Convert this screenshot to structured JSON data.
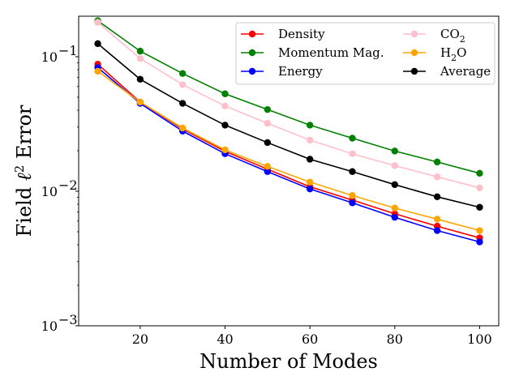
{
  "chart_data": {
    "type": "line",
    "title": "",
    "xlabel": "Number of Modes",
    "ylabel": "Field ℓ² Error",
    "ylabel_parts": {
      "prefix": "Field ",
      "ell": "ℓ",
      "sup": "2",
      "suffix": " Error"
    },
    "yscale": "log",
    "xlim": [
      5.5,
      104.5
    ],
    "ylim": [
      0.001,
      0.2
    ],
    "x": [
      10,
      20,
      30,
      40,
      50,
      60,
      70,
      80,
      90,
      100
    ],
    "x_ticks": [
      20,
      40,
      60,
      80,
      100
    ],
    "y_ticks": [
      {
        "value": 0.001,
        "base": "10",
        "exp": "−3"
      },
      {
        "value": 0.01,
        "base": "10",
        "exp": "−2"
      },
      {
        "value": 0.1,
        "base": "10",
        "exp": "−1"
      }
    ],
    "grid": false,
    "legend_position": "top-right",
    "series": [
      {
        "name": "Density",
        "color": "#ff0000",
        "values": [
          0.088,
          0.046,
          0.029,
          0.0198,
          0.0146,
          0.0108,
          0.0086,
          0.0068,
          0.0055,
          0.0045
        ]
      },
      {
        "name": "Momentum Mag.",
        "color": "#008000",
        "values": [
          0.185,
          0.11,
          0.075,
          0.053,
          0.0405,
          0.031,
          0.0248,
          0.0199,
          0.0165,
          0.0136
        ]
      },
      {
        "name": "Energy",
        "color": "#0000ff",
        "values": [
          0.083,
          0.045,
          0.028,
          0.019,
          0.014,
          0.0104,
          0.0082,
          0.0064,
          0.0051,
          0.0042
        ]
      },
      {
        "name": "CO₂",
        "color": "#ffc0cb",
        "label_main": "CO",
        "label_sub": "2",
        "values": [
          0.18,
          0.097,
          0.062,
          0.043,
          0.032,
          0.024,
          0.019,
          0.0155,
          0.0128,
          0.0106
        ]
      },
      {
        "name": "H₂O",
        "color": "#ffa500",
        "label_main": "H",
        "label_sub": "2",
        "label_tail": "O",
        "values": [
          0.078,
          0.046,
          0.0295,
          0.0203,
          0.0153,
          0.0117,
          0.0093,
          0.0075,
          0.0062,
          0.0051
        ]
      },
      {
        "name": "Average",
        "color": "#000000",
        "values": [
          0.125,
          0.068,
          0.045,
          0.031,
          0.023,
          0.0173,
          0.014,
          0.0112,
          0.0091,
          0.0076
        ]
      }
    ]
  }
}
